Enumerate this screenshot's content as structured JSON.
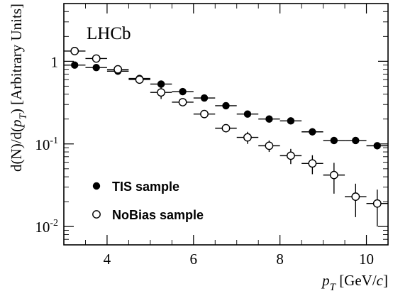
{
  "chart_data": {
    "type": "scatter",
    "title": "",
    "annotation": "LHCb",
    "xlabel_parts": [
      "p",
      "T",
      " [GeV/",
      "c",
      "]"
    ],
    "ylabel_parts": [
      "d(N)/d(",
      "p",
      "T",
      ") [Arbitrary Units]"
    ],
    "xlim": [
      3.0,
      10.5
    ],
    "ylim": [
      0.006,
      5.0
    ],
    "yscale": "log",
    "x_ticks": [
      4,
      6,
      8,
      10
    ],
    "x_tick_labels": [
      "4",
      "6",
      "8",
      "10"
    ],
    "y_ticks": [
      0.01,
      0.1,
      1
    ],
    "y_tick_labels": [
      {
        "base": "10",
        "exp": "-2"
      },
      {
        "base": "10",
        "exp": "-1"
      },
      {
        "base": "1",
        "exp": ""
      }
    ],
    "legend_position": "bottom-left",
    "bin_half_width": 0.25,
    "series": [
      {
        "name": "TIS sample",
        "marker": "filled-circle",
        "x": [
          3.25,
          3.75,
          4.25,
          4.75,
          5.25,
          5.75,
          6.25,
          6.75,
          7.25,
          7.75,
          8.25,
          8.75,
          9.25,
          9.75,
          10.25
        ],
        "y": [
          0.9,
          0.84,
          0.76,
          0.62,
          0.53,
          0.43,
          0.36,
          0.29,
          0.23,
          0.2,
          0.19,
          0.14,
          0.11,
          0.11,
          0.095
        ],
        "y_err": [
          0.02,
          0.02,
          0.02,
          0.02,
          0.02,
          0.02,
          0.015,
          0.012,
          0.01,
          0.008,
          0.008,
          0.006,
          0.005,
          0.005,
          0.006
        ]
      },
      {
        "name": "NoBias sample",
        "marker": "open-circle",
        "x": [
          3.25,
          3.75,
          4.25,
          4.75,
          5.25,
          5.75,
          6.25,
          6.75,
          7.25,
          7.75,
          8.25,
          8.75,
          9.25,
          9.75,
          10.25
        ],
        "y": [
          1.33,
          1.08,
          0.8,
          0.6,
          0.42,
          0.32,
          0.23,
          0.155,
          0.12,
          0.095,
          0.072,
          0.058,
          0.042,
          0.023,
          0.019
        ],
        "y_err": [
          0.07,
          0.06,
          0.05,
          0.05,
          0.07,
          0.03,
          0.025,
          0.015,
          0.02,
          0.015,
          0.015,
          0.015,
          0.017,
          0.01,
          0.009
        ]
      }
    ]
  }
}
